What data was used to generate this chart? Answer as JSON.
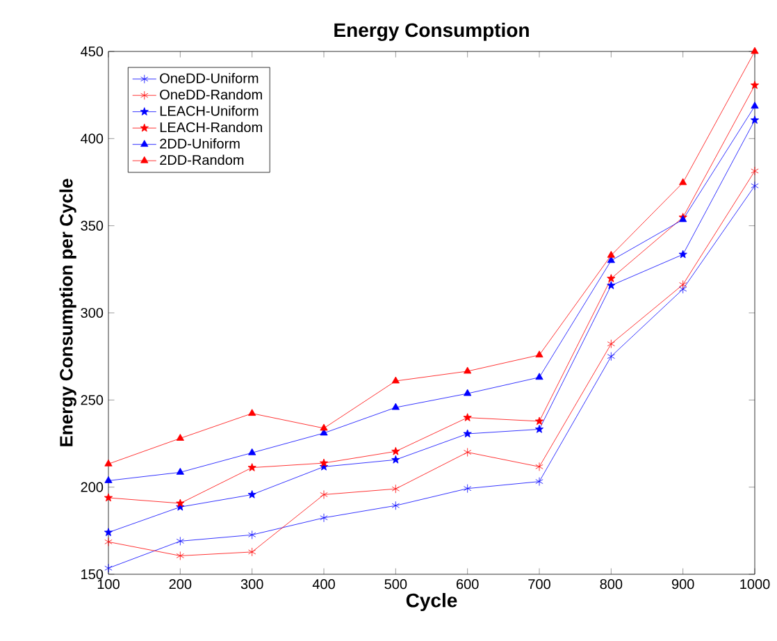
{
  "chart_data": {
    "type": "line",
    "title": "Energy Consumption",
    "xlabel": "Cycle",
    "ylabel": "Energy Consumption per Cycle",
    "x": [
      100,
      200,
      300,
      400,
      500,
      600,
      700,
      800,
      900,
      1000
    ],
    "series": [
      {
        "name": "OneDD-Uniform",
        "color": "#0000ff",
        "marker": "cross",
        "values": [
          153.5,
          169,
          172.6,
          182.4,
          189.4,
          199.2,
          203.2,
          275,
          313.6,
          372.9
        ]
      },
      {
        "name": "OneDD-Random",
        "color": "#ff0000",
        "marker": "cross",
        "values": [
          168.6,
          160.6,
          162.8,
          195.7,
          199,
          220,
          211.7,
          282.2,
          316.2,
          381.4
        ]
      },
      {
        "name": "LEACH-Uniform",
        "color": "#0000ff",
        "marker": "star",
        "values": [
          174,
          188.6,
          195.7,
          211.7,
          215.7,
          230.6,
          233.2,
          315.7,
          333.5,
          410.6
        ]
      },
      {
        "name": "LEACH-Random",
        "color": "#ff0000",
        "marker": "star",
        "values": [
          193.9,
          190.7,
          211.2,
          213.8,
          220.5,
          239.9,
          237.8,
          319.7,
          354.8,
          430.6
        ]
      },
      {
        "name": "2DD-Uniform",
        "color": "#0000ff",
        "marker": "triangle",
        "values": [
          203.7,
          208.5,
          219.7,
          231,
          245.7,
          253.7,
          263,
          330,
          353.5,
          418.6
        ]
      },
      {
        "name": "2DD-Random",
        "color": "#ff0000",
        "marker": "triangle",
        "values": [
          213.3,
          228,
          242.3,
          233.8,
          260.9,
          266.5,
          275.8,
          333,
          374.7,
          450
        ]
      }
    ],
    "xlim": [
      100,
      1000
    ],
    "ylim": [
      150,
      450
    ],
    "xticks": [
      100,
      200,
      300,
      400,
      500,
      600,
      700,
      800,
      900,
      1000
    ],
    "yticks": [
      150,
      200,
      250,
      300,
      350,
      400,
      450
    ],
    "grid": false,
    "legend": "top left",
    "line_style": "solid"
  }
}
